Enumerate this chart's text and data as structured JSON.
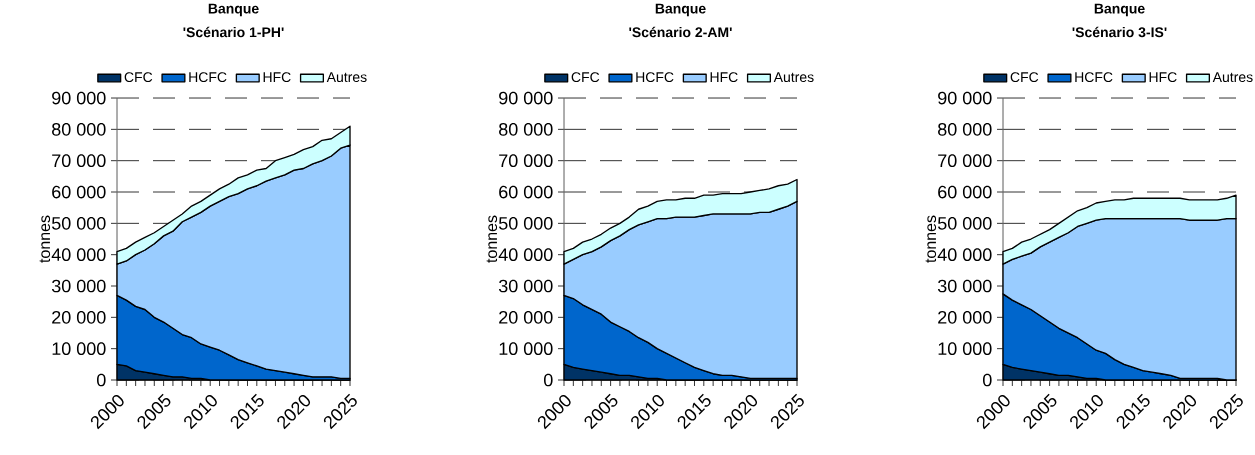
{
  "chart_data": [
    {
      "type": "area",
      "title": "Banque",
      "subtitle": "'Scénario 1-PH'",
      "ylabel": "tonnes",
      "stacked": true,
      "grid": "y",
      "legend": "top",
      "x": [
        2000,
        2001,
        2002,
        2003,
        2004,
        2005,
        2006,
        2007,
        2008,
        2009,
        2010,
        2011,
        2012,
        2013,
        2014,
        2015,
        2016,
        2017,
        2018,
        2019,
        2020,
        2021,
        2022,
        2023,
        2024,
        2025
      ],
      "xlim": [
        2000,
        2025
      ],
      "xticks": [
        2000,
        2005,
        2010,
        2015,
        2020,
        2025
      ],
      "ylim": [
        0,
        90000
      ],
      "yticks": [
        {
          "value": 0,
          "label": "0"
        },
        {
          "value": 10000,
          "label": "10 000"
        },
        {
          "value": 20000,
          "label": "20 000"
        },
        {
          "value": 30000,
          "label": "30 000"
        },
        {
          "value": 40000,
          "label": "40 000"
        },
        {
          "value": 50000,
          "label": "50 000"
        },
        {
          "value": 60000,
          "label": "60 000"
        },
        {
          "value": 70000,
          "label": "70 000"
        },
        {
          "value": 80000,
          "label": "80 000"
        },
        {
          "value": 90000,
          "label": "90 000"
        }
      ],
      "series": [
        {
          "name": "CFC",
          "color": "#003366",
          "values": [
            5000,
            4500,
            3000,
            2500,
            2000,
            1500,
            1000,
            1000,
            500,
            500,
            0,
            0,
            0,
            0,
            0,
            0,
            0,
            0,
            0,
            0,
            0,
            0,
            0,
            0,
            0,
            0
          ]
        },
        {
          "name": "HCFC",
          "color": "#0066cc",
          "values": [
            22000,
            21000,
            20500,
            20000,
            18000,
            17000,
            15500,
            13500,
            13000,
            11000,
            10500,
            9500,
            8000,
            6500,
            5500,
            4500,
            3500,
            3000,
            2500,
            2000,
            1500,
            1000,
            1000,
            1000,
            500,
            500
          ]
        },
        {
          "name": "HFC",
          "color": "#99ccff",
          "values": [
            10000,
            12500,
            16500,
            19000,
            23500,
            27500,
            31000,
            36000,
            38500,
            42000,
            45000,
            47500,
            50500,
            53000,
            55500,
            57500,
            60000,
            61500,
            63000,
            65000,
            66000,
            68000,
            69000,
            70500,
            73500,
            74500
          ]
        },
        {
          "name": "Autres",
          "color": "#ccffff",
          "values": [
            4000,
            4000,
            4000,
            4000,
            3500,
            3000,
            3500,
            2500,
            3500,
            3500,
            3500,
            4000,
            4000,
            5000,
            4500,
            5000,
            4000,
            5500,
            5500,
            5000,
            6000,
            5500,
            6500,
            5500,
            5000,
            6000
          ]
        }
      ]
    },
    {
      "type": "area",
      "title": "Banque",
      "subtitle": "'Scénario 2-AM'",
      "ylabel": "tonnes",
      "stacked": true,
      "grid": "y",
      "legend": "top",
      "x": [
        2000,
        2001,
        2002,
        2003,
        2004,
        2005,
        2006,
        2007,
        2008,
        2009,
        2010,
        2011,
        2012,
        2013,
        2014,
        2015,
        2016,
        2017,
        2018,
        2019,
        2020,
        2021,
        2022,
        2023,
        2024,
        2025
      ],
      "xlim": [
        2000,
        2025
      ],
      "xticks": [
        2000,
        2005,
        2010,
        2015,
        2020,
        2025
      ],
      "ylim": [
        0,
        90000
      ],
      "yticks": [
        {
          "value": 0,
          "label": "0"
        },
        {
          "value": 10000,
          "label": "10 000"
        },
        {
          "value": 20000,
          "label": "20 000"
        },
        {
          "value": 30000,
          "label": "30 000"
        },
        {
          "value": 40000,
          "label": "40 000"
        },
        {
          "value": 50000,
          "label": "50 000"
        },
        {
          "value": 60000,
          "label": "60 000"
        },
        {
          "value": 70000,
          "label": "70 000"
        },
        {
          "value": 80000,
          "label": "80 000"
        },
        {
          "value": 90000,
          "label": "90 000"
        }
      ],
      "series": [
        {
          "name": "CFC",
          "color": "#003366",
          "values": [
            5000,
            4000,
            3500,
            3000,
            2500,
            2000,
            1500,
            1500,
            1000,
            500,
            500,
            0,
            0,
            0,
            0,
            0,
            0,
            0,
            0,
            0,
            0,
            0,
            0,
            0,
            0,
            0
          ]
        },
        {
          "name": "HCFC",
          "color": "#0066cc",
          "values": [
            22000,
            22000,
            20500,
            19500,
            18500,
            16500,
            15500,
            14000,
            12500,
            11500,
            9500,
            8500,
            7000,
            5500,
            4000,
            3000,
            2000,
            1500,
            1500,
            1000,
            500,
            500,
            500,
            500,
            500,
            500
          ]
        },
        {
          "name": "HFC",
          "color": "#99ccff",
          "values": [
            10000,
            12500,
            16000,
            18500,
            21500,
            26000,
            29000,
            32500,
            36000,
            38500,
            41500,
            43000,
            45000,
            46500,
            48000,
            49500,
            51000,
            51500,
            51500,
            52000,
            52500,
            53000,
            53000,
            54000,
            55000,
            56500
          ]
        },
        {
          "name": "Autres",
          "color": "#ccffff",
          "values": [
            4000,
            3500,
            4000,
            4000,
            4000,
            4000,
            4000,
            4000,
            5000,
            5000,
            5500,
            6000,
            5500,
            6000,
            6000,
            6500,
            6000,
            6500,
            6500,
            6500,
            7000,
            7000,
            7500,
            7500,
            7000,
            7000
          ]
        }
      ]
    },
    {
      "type": "area",
      "title": "Banque",
      "subtitle": "'Scénario 3-IS'",
      "ylabel": "tonnes",
      "stacked": true,
      "grid": "y",
      "legend": "top",
      "x": [
        2000,
        2001,
        2002,
        2003,
        2004,
        2005,
        2006,
        2007,
        2008,
        2009,
        2010,
        2011,
        2012,
        2013,
        2014,
        2015,
        2016,
        2017,
        2018,
        2019,
        2020,
        2021,
        2022,
        2023,
        2024,
        2025
      ],
      "xlim": [
        2000,
        2025
      ],
      "xticks": [
        2000,
        2005,
        2010,
        2015,
        2020,
        2025
      ],
      "ylim": [
        0,
        90000
      ],
      "yticks": [
        {
          "value": 0,
          "label": "0"
        },
        {
          "value": 10000,
          "label": "10 000"
        },
        {
          "value": 20000,
          "label": "20 000"
        },
        {
          "value": 30000,
          "label": "30 000"
        },
        {
          "value": 40000,
          "label": "40 000"
        },
        {
          "value": 50000,
          "label": "50 000"
        },
        {
          "value": 60000,
          "label": "60 000"
        },
        {
          "value": 70000,
          "label": "70 000"
        },
        {
          "value": 80000,
          "label": "80 000"
        },
        {
          "value": 90000,
          "label": "90 000"
        }
      ],
      "series": [
        {
          "name": "CFC",
          "color": "#003366",
          "values": [
            5000,
            4000,
            3500,
            3000,
            2500,
            2000,
            1500,
            1500,
            1000,
            500,
            500,
            0,
            0,
            0,
            0,
            0,
            0,
            0,
            0,
            0,
            0,
            0,
            0,
            0,
            0,
            0
          ]
        },
        {
          "name": "HCFC",
          "color": "#0066cc",
          "values": [
            22500,
            21500,
            20500,
            19500,
            18000,
            16500,
            15000,
            13500,
            12500,
            11000,
            9000,
            8500,
            6500,
            5000,
            4000,
            3000,
            2500,
            2000,
            1500,
            500,
            500,
            500,
            500,
            500,
            0,
            0
          ]
        },
        {
          "name": "HFC",
          "color": "#99ccff",
          "values": [
            9500,
            13000,
            15500,
            18000,
            22000,
            25500,
            29000,
            32000,
            35500,
            38500,
            41500,
            43000,
            45000,
            46500,
            47500,
            48500,
            49000,
            49500,
            50000,
            51000,
            50500,
            50500,
            50500,
            50500,
            51500,
            51500
          ]
        },
        {
          "name": "Autres",
          "color": "#ccffff",
          "values": [
            4000,
            3500,
            4500,
            4500,
            4000,
            4000,
            4500,
            5000,
            5000,
            5000,
            5500,
            5500,
            6000,
            6000,
            6500,
            6500,
            6500,
            6500,
            6500,
            6500,
            6500,
            6500,
            6500,
            6500,
            6500,
            7500
          ]
        }
      ]
    }
  ]
}
